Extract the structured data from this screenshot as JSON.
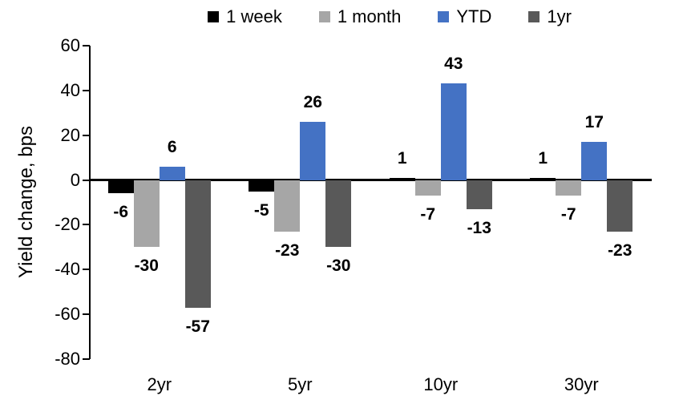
{
  "chart_data": {
    "type": "bar",
    "title": "",
    "ylabel": "Yield change, bps",
    "xlabel": "",
    "categories": [
      "2yr",
      "5yr",
      "10yr",
      "30yr"
    ],
    "series": [
      {
        "name": "1 week",
        "color": "#000000",
        "values": [
          -6,
          -5,
          1,
          1
        ]
      },
      {
        "name": "1 month",
        "color": "#A6A6A6",
        "values": [
          -30,
          -23,
          -7,
          -7
        ]
      },
      {
        "name": "YTD",
        "color": "#4472C4",
        "values": [
          6,
          26,
          43,
          17
        ]
      },
      {
        "name": "1yr",
        "color": "#595959",
        "values": [
          -57,
          -30,
          -13,
          -23
        ]
      }
    ],
    "ylim": [
      -80,
      60
    ],
    "ytick_step": 20,
    "yticks": [
      60,
      40,
      20,
      0,
      -20,
      -40,
      -60,
      -80
    ],
    "grid": false,
    "legend_position": "top",
    "data_labels": true,
    "axis_color": "#000000",
    "background_color": "#FFFFFF"
  }
}
